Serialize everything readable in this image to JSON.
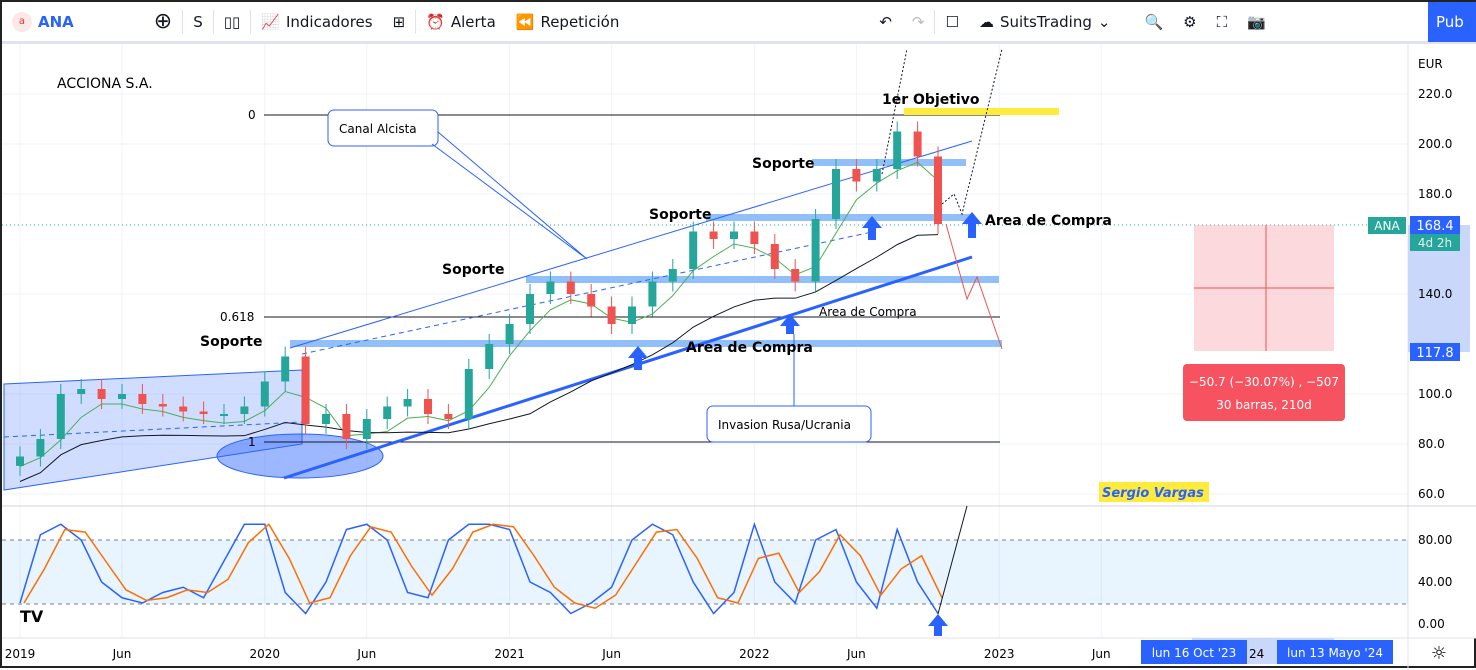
{
  "toolbar": {
    "symbol": "ANA",
    "interval": "S",
    "indicators": "Indicadores",
    "alert": "Alerta",
    "replay": "Repetición",
    "layout_name": "SuitsTrading",
    "publish": "Pub"
  },
  "chart_data": {
    "type": "candlestick",
    "title": "ACCIONA S.A.",
    "currency": "EUR",
    "y_ticks": [
      "220.0",
      "200.0",
      "180.0",
      "140.0",
      "100.0",
      "80.0",
      "60.0"
    ],
    "x_ticks": [
      "2019",
      "Jun",
      "2020",
      "Jun",
      "2021",
      "Jun",
      "2022",
      "Jun",
      "2023",
      "Jun"
    ],
    "osc_ticks": [
      "80.00",
      "40.00",
      "0.00"
    ],
    "monthly_close": [
      75,
      82,
      100,
      102,
      98,
      100,
      96,
      95,
      93,
      92,
      92,
      95,
      105,
      115,
      88,
      92,
      82,
      90,
      95,
      98,
      92,
      90,
      110,
      120,
      128,
      140,
      145,
      140,
      135,
      128,
      135,
      145,
      150,
      165,
      162,
      165,
      160,
      150,
      145,
      170,
      190,
      185,
      190,
      205,
      195,
      168
    ],
    "stoch": [
      20,
      85,
      95,
      80,
      40,
      25,
      20,
      30,
      35,
      25,
      60,
      95,
      95,
      30,
      10,
      40,
      90,
      95,
      80,
      30,
      25,
      80,
      95,
      95,
      90,
      40,
      30,
      10,
      20,
      35,
      80,
      95,
      85,
      40,
      10,
      30,
      95,
      40,
      20,
      80,
      90,
      40,
      15,
      90,
      40,
      10
    ],
    "last_price": {
      "symbol": "ANA",
      "value": "168.4",
      "countdown": "4d 2h"
    },
    "target_price": "117.8",
    "measure": {
      "line1": "−50.7 (−30.07%) , −507",
      "line2": "30 barras, 210d"
    },
    "date_labels": [
      "lun 16 Oct '23",
      "lun 13 Mayo '24"
    ],
    "date_partial": "24",
    "annotations": {
      "fib0": "0",
      "fib618": "0.618",
      "fib1": "1",
      "objetivo": "1er Objetivo",
      "canal": "Canal Alcista",
      "soporte": "Soporte",
      "area": "Area de Compra",
      "invasion": "Invasion Rusa/Ucrania",
      "author": "Sergio Vargas"
    },
    "colors": {
      "up": "#26a69a",
      "down": "#ef5350",
      "ma_green": "#4caf50",
      "ma_black": "#131722",
      "stoch_k": "#2962ff",
      "stoch_d": "#ff6d00",
      "support": "#90bff9",
      "objective": "#ffeb3b"
    }
  }
}
